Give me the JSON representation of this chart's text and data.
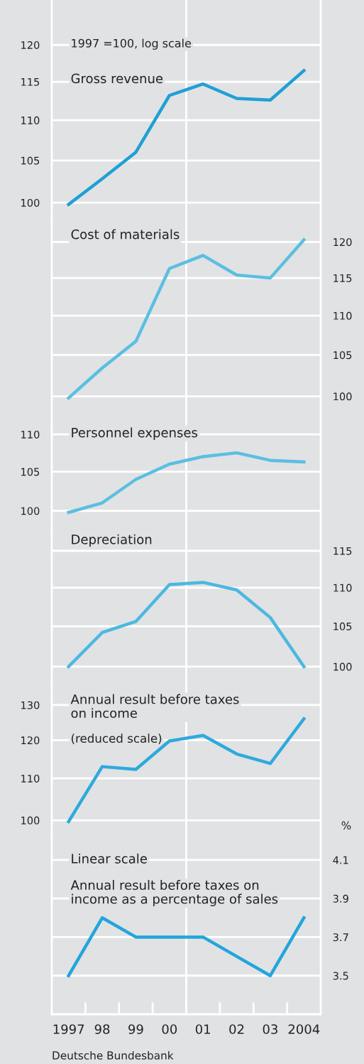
{
  "chart_data": [
    {
      "type": "line",
      "title": "Gross revenue",
      "annotations": [
        "1997 =100, log scale"
      ],
      "categories": [
        "1997",
        "98",
        "99",
        "00",
        "01",
        "02",
        "03",
        "2004"
      ],
      "log": true,
      "grid": "y",
      "tick_labels": "y",
      "ylim": [
        97.9,
        126.4
      ],
      "yticks": [
        100,
        105,
        110,
        115,
        120
      ],
      "series": [
        {
          "color": "#1fa0d6",
          "values": [
            99.8,
            102.8,
            106,
            113.2,
            114.7,
            112.8,
            112.6,
            116.5
          ]
        }
      ]
    },
    {
      "type": "line",
      "title": "Cost of materials",
      "categories": [
        "1997",
        "98",
        "99",
        "00",
        "01",
        "02",
        "03",
        "2004"
      ],
      "log": "y2",
      "grid": "y",
      "tick_labels": "y",
      "y2lim": [
        96.5,
        123
      ],
      "y2ticks": [
        100,
        105,
        110,
        115,
        120
      ],
      "series": [
        {
          "color": "#5bbfe0",
          "axis": "y2",
          "values": [
            99.8,
            103.4,
            106.7,
            116.3,
            118.1,
            115.4,
            115,
            120.3
          ]
        }
      ]
    },
    {
      "type": "line",
      "title": "Personnel expenses",
      "categories": [
        "1997",
        "98",
        "99",
        "00",
        "01",
        "02",
        "03",
        "2004"
      ],
      "log": true,
      "grid": "y",
      "tick_labels": "y",
      "ylim": [
        97.7,
        111.1
      ],
      "yticks": [
        100,
        105,
        110
      ],
      "series": [
        {
          "color": "#5bbfe0",
          "values": [
            99.8,
            101,
            104,
            106,
            107,
            107.5,
            106.5,
            106.3
          ]
        }
      ]
    },
    {
      "type": "line",
      "title": "Depreciation",
      "categories": [
        "1997",
        "98",
        "99",
        "00",
        "01",
        "02",
        "03",
        "2004"
      ],
      "log": "y2",
      "grid": "y",
      "tick_labels": "y",
      "y2lim": [
        97.7,
        118
      ],
      "y2ticks": [
        100,
        105,
        110,
        115
      ],
      "series": [
        {
          "color": "#4cb8e0",
          "axis": "y2",
          "values": [
            100,
            104.2,
            105.6,
            110.4,
            110.7,
            109.7,
            106.1,
            100
          ]
        }
      ]
    },
    {
      "type": "line",
      "title": "Annual result before taxes\non income",
      "subtitle": "(reduced scale)",
      "categories": [
        "1997",
        "98",
        "99",
        "00",
        "01",
        "02",
        "03",
        "2004"
      ],
      "log": true,
      "grid": "y",
      "tick_labels": "y",
      "ylim": [
        95.9,
        135.8
      ],
      "yticks": [
        100,
        110,
        120,
        130
      ],
      "series": [
        {
          "color": "#2eaadc",
          "values": [
            99.7,
            113,
            112.3,
            119.8,
            121.3,
            116.3,
            113.8,
            126
          ]
        }
      ]
    },
    {
      "type": "line",
      "title": "Annual result before taxes on\nincome as a percentage of sales",
      "annotations": [
        "Linear scale",
        "Deutsche Bundesbank"
      ],
      "y2label": "%",
      "categories": [
        "1997",
        "98",
        "99",
        "00",
        "01",
        "02",
        "03",
        "2004"
      ],
      "grid": "y",
      "y2lim": [
        3.3,
        4.21
      ],
      "y2ticks": [
        3.5,
        3.7,
        3.9,
        4.1
      ],
      "series": [
        {
          "color": "#22a5dc",
          "axis": "y2",
          "values": [
            3.5,
            3.8,
            3.7,
            3.7,
            3.7,
            3.6,
            3.5,
            3.8
          ]
        }
      ]
    }
  ]
}
